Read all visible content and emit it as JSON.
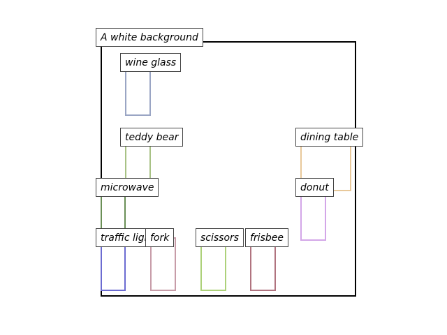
{
  "scene": {
    "background_label": "A white background",
    "frame_color": "#000000"
  },
  "objects": [
    {
      "id": "wine-glass",
      "label": "wine glass",
      "color": "#9aa5c4"
    },
    {
      "id": "teddy-bear",
      "label": "teddy bear",
      "color": "#a8c285"
    },
    {
      "id": "dining-table",
      "label": "dining table",
      "color": "#e8c89a"
    },
    {
      "id": "microwave",
      "label": "microwave",
      "color": "#6a8f56"
    },
    {
      "id": "donut",
      "label": "donut",
      "color": "#d3a6e8"
    },
    {
      "id": "traffic-light",
      "label": "traffic light",
      "color": "#6b6bd1"
    },
    {
      "id": "fork",
      "label": "fork",
      "color": "#c79ca8"
    },
    {
      "id": "scissors",
      "label": "scissors",
      "color": "#add17a"
    },
    {
      "id": "frisbee",
      "label": "frisbee",
      "color": "#b0737f"
    }
  ]
}
